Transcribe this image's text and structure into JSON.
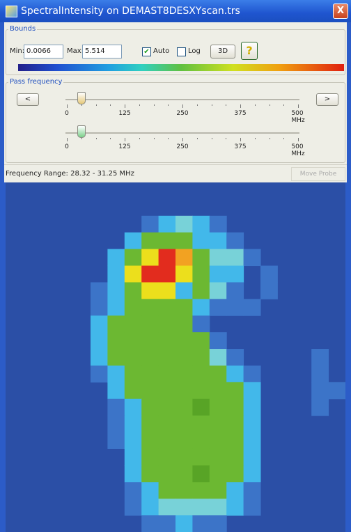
{
  "window": {
    "title": "SpectralIntensity on DEMAST8DESXYscan.trs",
    "close": "X"
  },
  "bounds": {
    "label": "Bounds",
    "min_label": "Min:",
    "min_value": "0.0066",
    "max_label": "Max:",
    "max_value": "5.514",
    "auto_label": "Auto",
    "auto_checked": true,
    "log_label": "Log",
    "log_checked": false,
    "button_3d": "3D",
    "help": "?"
  },
  "pass_frequency": {
    "label": "Pass frequency",
    "prev": "<",
    "next": ">",
    "scale": [
      "0",
      "125",
      "250",
      "375",
      "500 MHz"
    ]
  },
  "status": {
    "range": "Frequency Range: 28.32 - 31.25 MHz",
    "move_probe": "Move Probe"
  }
}
